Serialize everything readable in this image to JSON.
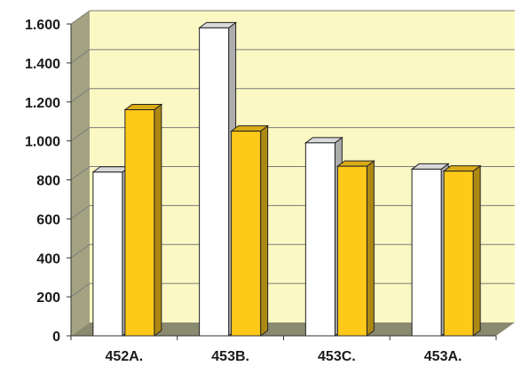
{
  "chart_data": {
    "type": "bar",
    "title": "",
    "xlabel": "",
    "ylabel": "",
    "categories": [
      "452A.",
      "453B.",
      "453C.",
      "453A."
    ],
    "series": [
      {
        "values": [
          840,
          1580,
          990,
          855
        ],
        "color": "#ffffff"
      },
      {
        "values": [
          1160,
          1050,
          870,
          845
        ],
        "color": "#ffc91a"
      }
    ],
    "ylim": [
      0,
      1600
    ],
    "yticks": [
      0,
      200,
      400,
      600,
      800,
      1000,
      1200,
      1400,
      1600
    ],
    "ytick_labels": [
      "0",
      "200",
      "400",
      "600",
      "800",
      "1.000",
      "1.200",
      "1.400",
      "1.600"
    ],
    "grid": true,
    "legend": "none",
    "style": "3d-column",
    "colors": {
      "wall": "#fbf8c4",
      "side_wall": "#a3a383",
      "floor": "#8a8a70",
      "gridline": "#7a7a7a"
    }
  }
}
